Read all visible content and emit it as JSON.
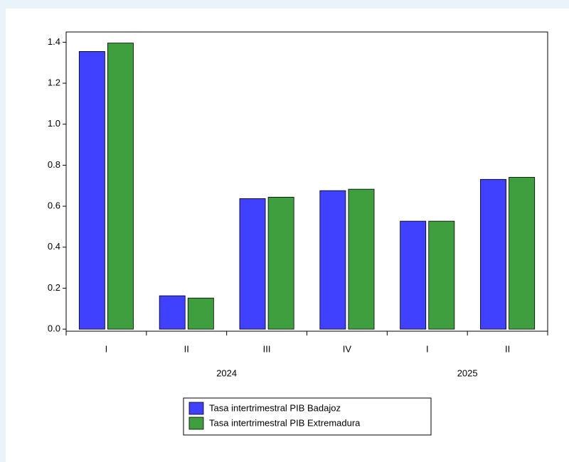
{
  "chart_data": {
    "type": "bar",
    "categories": [
      "I",
      "II",
      "III",
      "IV",
      "I",
      "II"
    ],
    "category_groups": [
      {
        "label": "2024",
        "count": 4
      },
      {
        "label": "2025",
        "count": 2
      }
    ],
    "series": [
      {
        "name": "Tasa intertrimestral PIB Badajoz",
        "color": "#4040ff",
        "values": [
          1.355,
          0.163,
          0.637,
          0.676,
          0.527,
          0.731
        ]
      },
      {
        "name": "Tasa intertrimestral PIB Extremadura",
        "color": "#3f9f3f",
        "values": [
          1.396,
          0.152,
          0.644,
          0.683,
          0.527,
          0.741
        ]
      }
    ],
    "ylim": [
      -0.01,
      1.45
    ],
    "yticks": [
      {
        "value": 0,
        "label": "0.0"
      },
      0.2,
      0.4,
      0.6,
      0.8,
      {
        "value": 1,
        "label": "1.0"
      },
      1.2,
      1.4
    ],
    "legend": "bottom"
  }
}
